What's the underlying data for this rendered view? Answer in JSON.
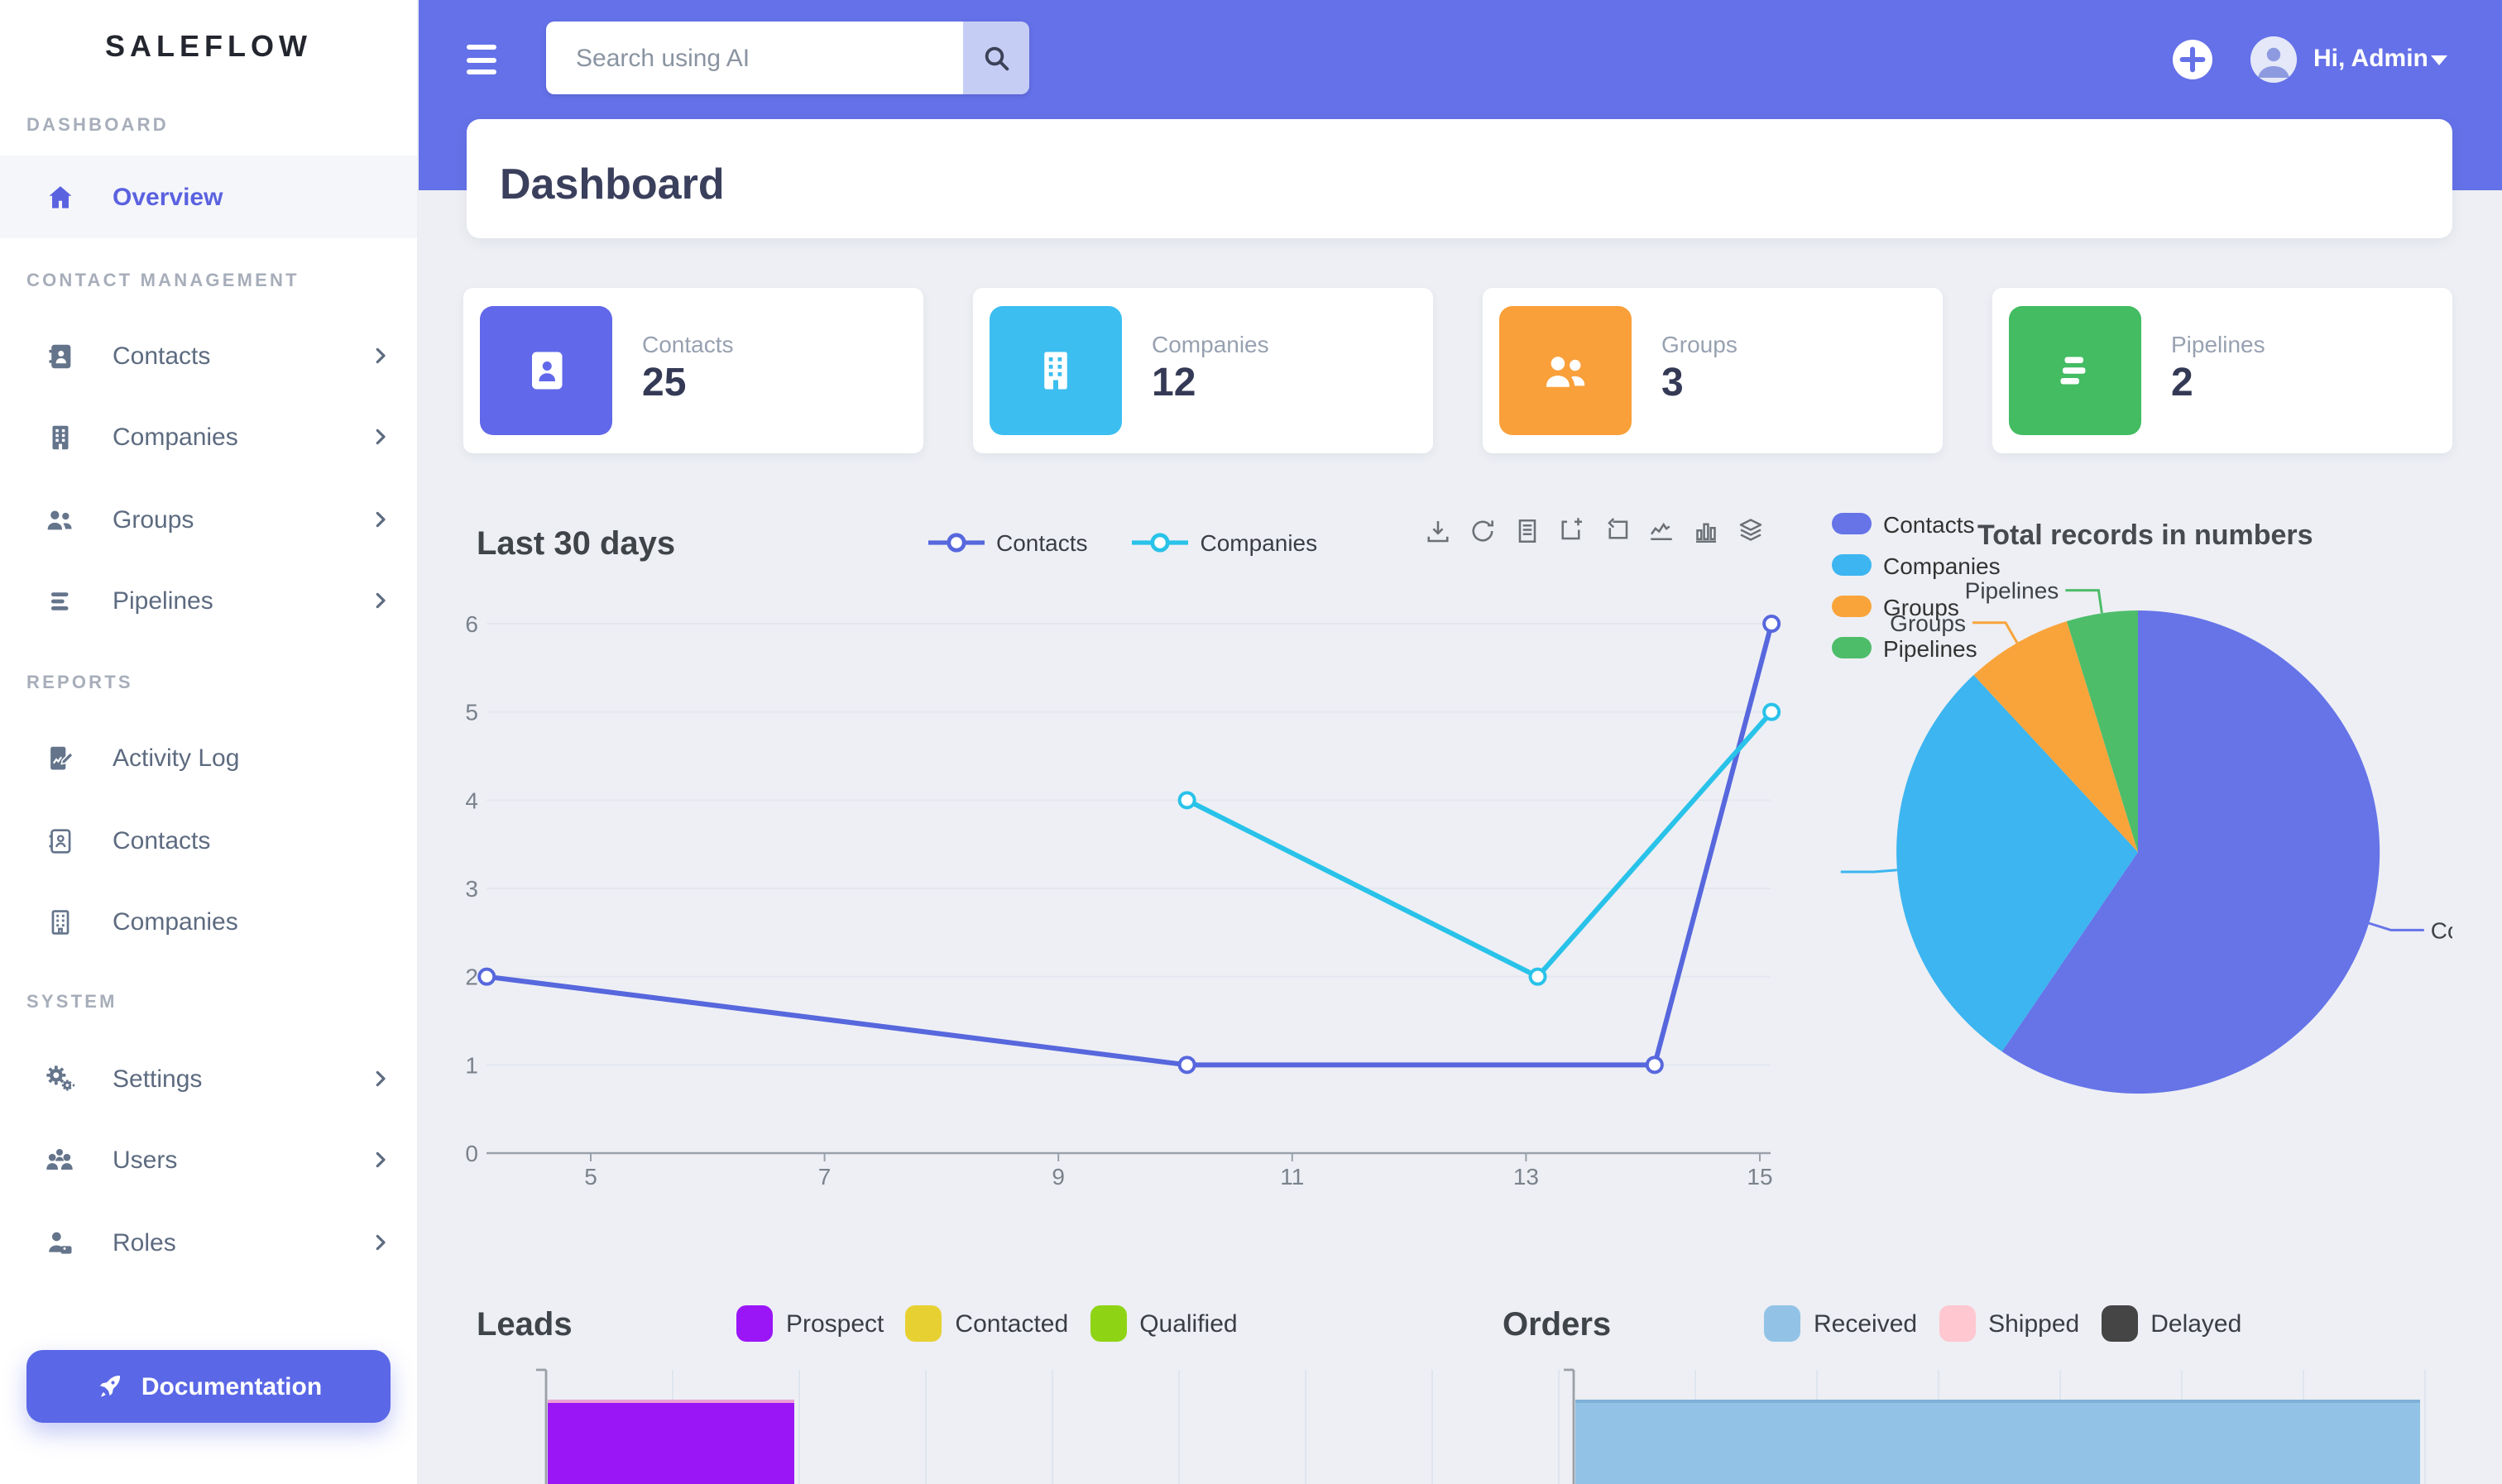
{
  "app": {
    "brand": "SALEFLOW"
  },
  "topbar": {
    "search_placeholder": "Search using AI",
    "greeting": "Hi, Admin"
  },
  "page": {
    "title": "Dashboard"
  },
  "sidebar": {
    "sections": [
      {
        "label": "DASHBOARD",
        "items": [
          {
            "label": "Overview",
            "icon": "home",
            "active": true
          }
        ]
      },
      {
        "label": "CONTACT MANAGEMENT",
        "items": [
          {
            "label": "Contacts",
            "icon": "contact-book"
          },
          {
            "label": "Companies",
            "icon": "building"
          },
          {
            "label": "Groups",
            "icon": "people"
          },
          {
            "label": "Pipelines",
            "icon": "pipeline"
          }
        ]
      },
      {
        "label": "REPORTS",
        "items": [
          {
            "label": "Activity Log",
            "icon": "activity-log"
          },
          {
            "label": "Contacts",
            "icon": "contact-book-outline"
          },
          {
            "label": "Companies",
            "icon": "building-outline"
          }
        ]
      },
      {
        "label": "SYSTEM",
        "items": [
          {
            "label": "Settings",
            "icon": "gears"
          },
          {
            "label": "Users",
            "icon": "users"
          },
          {
            "label": "Roles",
            "icon": "role"
          }
        ]
      }
    ],
    "doc_button": "Documentation"
  },
  "stats": [
    {
      "label": "Contacts",
      "value": "25",
      "color": "#6168e9"
    },
    {
      "label": "Companies",
      "value": "12",
      "color": "#3cbef0"
    },
    {
      "label": "Groups",
      "value": "3",
      "color": "#f9a03a"
    },
    {
      "label": "Pipelines",
      "value": "2",
      "color": "#43bc62"
    }
  ],
  "toolbar_icons": [
    "download",
    "refresh",
    "data-view",
    "zoom-select",
    "zoom-reset",
    "line-mode",
    "bar-mode",
    "stack-mode"
  ],
  "chart_data": [
    {
      "type": "line",
      "title": "Last 30 days",
      "xlabel": "",
      "ylabel": "",
      "x_ticks": [
        5,
        7,
        9,
        11,
        13,
        15
      ],
      "y_ticks": [
        0,
        1,
        2,
        3,
        4,
        5,
        6
      ],
      "ylim": [
        0,
        6
      ],
      "grid": true,
      "legend_position": "top",
      "series": [
        {
          "name": "Contacts",
          "color": "#5767dd",
          "points": [
            [
              4.11,
              2
            ],
            [
              10.1,
              1
            ],
            [
              14.1,
              1
            ],
            [
              15.1,
              6
            ]
          ]
        },
        {
          "name": "Companies",
          "color": "#29c2e9",
          "points": [
            [
              10.1,
              4
            ],
            [
              13.1,
              2
            ],
            [
              15.1,
              5
            ]
          ]
        }
      ]
    },
    {
      "type": "pie",
      "title": "Total records in numbers",
      "legend_position": "left",
      "start_angle": "top",
      "direction": "clockwise",
      "items": [
        {
          "name": "Contacts",
          "value": 25,
          "color": "#6674e8",
          "callout_label": "clipped-to-C"
        },
        {
          "name": "Companies",
          "value": 12,
          "color": "#3cb5f0",
          "callout_label": "hidden"
        },
        {
          "name": "Groups",
          "value": 3,
          "color": "#f9a43b",
          "callout_label": "shown"
        },
        {
          "name": "Pipelines",
          "value": 2,
          "color": "#4dbd6a",
          "callout_label": "shown"
        }
      ]
    },
    {
      "type": "bar",
      "orientation": "horizontal",
      "title": "Leads",
      "note": "chart clipped by viewport bottom; only first bar visible",
      "series": [
        {
          "name": "Prospect",
          "color": "#9b16f7"
        },
        {
          "name": "Contacted",
          "color": "#e7d132"
        },
        {
          "name": "Qualified",
          "color": "#8fd414"
        }
      ],
      "visible_bar": {
        "series": "Prospect",
        "length_grid_units": 2,
        "top_edge_color": "#eb9fd6"
      },
      "grid_units": 8
    },
    {
      "type": "bar",
      "orientation": "horizontal",
      "title": "Orders",
      "note": "chart clipped by viewport bottom; only first bar visible",
      "series": [
        {
          "name": "Received",
          "color": "#92c3e7"
        },
        {
          "name": "Shipped",
          "color": "#ffc7d0"
        },
        {
          "name": "Delayed",
          "color": "#454545"
        }
      ],
      "visible_bar": {
        "series": "Received",
        "length_grid_units": 7,
        "top_edge_color": "#7fb0d8"
      },
      "grid_units": 7
    }
  ]
}
